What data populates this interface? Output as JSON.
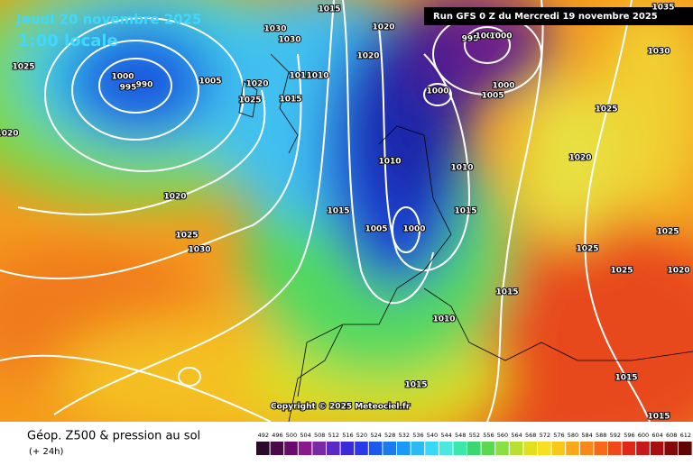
{
  "header": {
    "date": "Jeudi 20 novembre 2025",
    "time": "1:00 locale",
    "run": "Run GFS 0 Z du Mercredi 19 novembre 2025"
  },
  "isobar_labels": [
    "1035",
    "1015",
    "1020",
    "1020",
    "1030",
    "1030",
    "995",
    "1005",
    "1000",
    "1025",
    "1000",
    "995",
    "990",
    "1005",
    "1020",
    "1025",
    "1015",
    "1015",
    "1010",
    "1000",
    "1005",
    "1000",
    "1030",
    "1025",
    "1020",
    "1020",
    "1010",
    "1010",
    "1015",
    "1015",
    "1005",
    "1000",
    "1025",
    "1030",
    "1020",
    "1025",
    "1020",
    "1025",
    "1025",
    "1015",
    "1010",
    "1015",
    "1015",
    "1015"
  ],
  "copyright": "Copyright © 2025 Meteociel.fr",
  "footer": {
    "title": "Géop. Z500 & pression au sol",
    "subtitle": "(+ 24h)"
  },
  "scale": {
    "labels": [
      492,
      496,
      500,
      504,
      508,
      512,
      516,
      520,
      524,
      528,
      532,
      536,
      540,
      544,
      548,
      552,
      556,
      560,
      564,
      568,
      572,
      576,
      580,
      584,
      588,
      592,
      596,
      600,
      604,
      608,
      612
    ]
  }
}
